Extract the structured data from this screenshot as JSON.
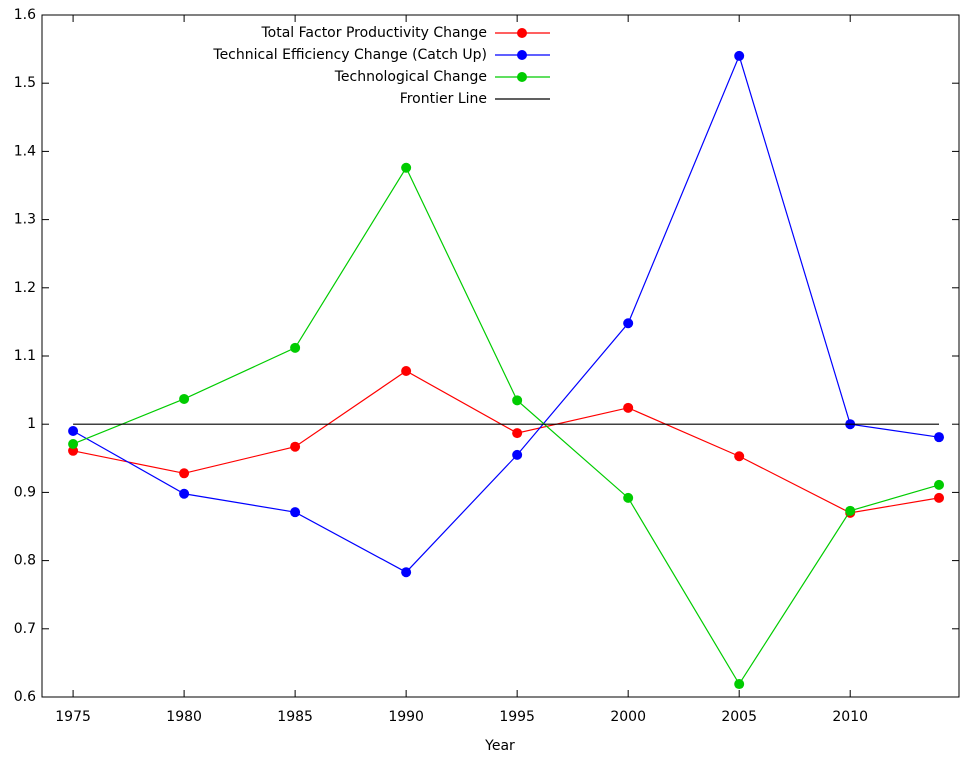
{
  "chart_data": {
    "type": "line",
    "x_label": "Year",
    "x": [
      1975,
      1980,
      1985,
      1990,
      1995,
      2000,
      2005,
      2010,
      2014
    ],
    "series": [
      {
        "name": "Total Factor Productivity Change",
        "color": "#ff0000",
        "marker": true,
        "values": [
          0.961,
          0.928,
          0.967,
          1.078,
          0.987,
          1.024,
          0.953,
          0.87,
          0.892
        ]
      },
      {
        "name": "Technical Efficiency Change (Catch Up)",
        "color": "#0000ff",
        "marker": true,
        "values": [
          0.99,
          0.898,
          0.871,
          0.783,
          0.955,
          1.148,
          1.54,
          1.0,
          0.981
        ]
      },
      {
        "name": "Technological Change",
        "color": "#00cc00",
        "marker": true,
        "values": [
          0.971,
          1.037,
          1.112,
          1.376,
          1.035,
          0.892,
          0.619,
          0.873,
          0.911
        ]
      },
      {
        "name": "Frontier Line",
        "color": "#000000",
        "marker": false,
        "values": [
          1,
          1,
          1,
          1,
          1,
          1,
          1,
          1,
          1
        ]
      }
    ],
    "xlim": [
      1973.6,
      2014.9
    ],
    "xticks": [
      1975,
      1980,
      1985,
      1990,
      1995,
      2000,
      2005,
      2010
    ],
    "ylim": [
      0.6,
      1.6
    ],
    "yticks": [
      0.6,
      0.7,
      0.8,
      0.9,
      1,
      1.1,
      1.2,
      1.3,
      1.4,
      1.5,
      1.6
    ],
    "grid": false,
    "legend": "top-left"
  }
}
